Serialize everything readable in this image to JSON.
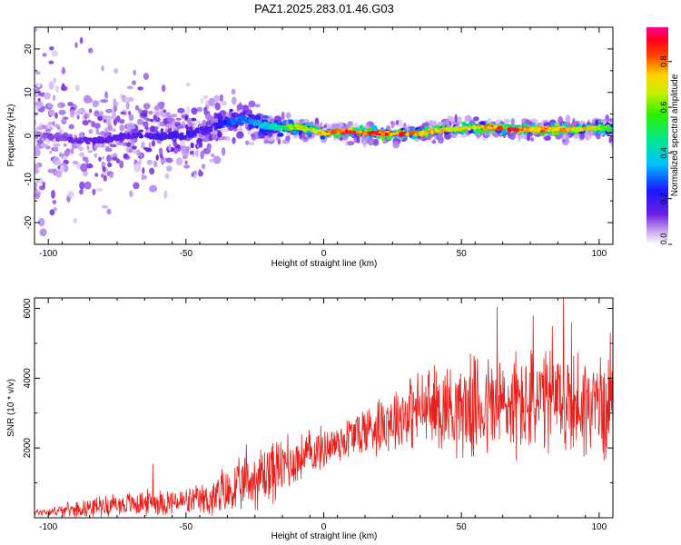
{
  "title": "PAZ1.2025.283.01.46.G03",
  "chart_data": [
    {
      "type": "heatmap",
      "title": "PAZ1.2025.283.01.46.G03",
      "xlabel": "Height of straight line (km)",
      "ylabel": "Frequency (Hz)",
      "xlim": [
        -105,
        105
      ],
      "ylim": [
        -25,
        25
      ],
      "xticks": [
        -100,
        -50,
        0,
        50,
        100
      ],
      "yticks": [
        -20,
        -10,
        0,
        10,
        20
      ],
      "ridge": {
        "description": "dominant frequency of spectral peak vs height",
        "x": [
          -105,
          -100,
          -90,
          -80,
          -70,
          -60,
          -50,
          -40,
          -35,
          -30,
          -25,
          -20,
          -15,
          -10,
          -5,
          0,
          5,
          10,
          15,
          20,
          25,
          30,
          35,
          40,
          45,
          50,
          55,
          60,
          65,
          70,
          75,
          80,
          85,
          90,
          95,
          100,
          105
        ],
        "freq": [
          0,
          0,
          -1,
          -1,
          0,
          0,
          0,
          2,
          3,
          4,
          3,
          2,
          2,
          2,
          1.5,
          0.5,
          1,
          1,
          0.5,
          0.5,
          0.5,
          0.5,
          0.5,
          1,
          1.5,
          1.5,
          2,
          2,
          1.5,
          1.5,
          1.5,
          1.5,
          1.5,
          1.5,
          1.5,
          2,
          1.5
        ],
        "peak_amplitude": [
          0.1,
          0.12,
          0.15,
          0.18,
          0.18,
          0.2,
          0.22,
          0.2,
          0.3,
          0.35,
          0.4,
          0.45,
          0.55,
          0.75,
          0.8,
          0.85,
          0.9,
          0.95,
          0.95,
          0.95,
          0.95,
          0.9,
          0.85,
          0.85,
          0.8,
          0.75,
          0.8,
          0.9,
          0.95,
          0.95,
          0.9,
          0.95,
          0.9,
          0.85,
          0.8,
          0.7,
          0.6
        ],
        "spread_hz": [
          12,
          12,
          10,
          8,
          7,
          6,
          5,
          4,
          3,
          2.5,
          2.5,
          2,
          1.5,
          1.2,
          1.2,
          1,
          1,
          1,
          1,
          1,
          1,
          1,
          1,
          1,
          1,
          1,
          1,
          1,
          1,
          1,
          1,
          1,
          1,
          1,
          1,
          1.2,
          1.5
        ]
      },
      "colorbar": {
        "label": "Normalized spectral amplitude",
        "range": [
          0,
          0.95
        ],
        "ticks": [
          "0.0",
          "0.2",
          "0.4",
          "0.6",
          "0.8"
        ],
        "colormap": "rainbow: white/lavender, purple, blue, cyan, green, yellow, orange, red, magenta"
      }
    },
    {
      "type": "line",
      "xlabel": "Height of straight line (km)",
      "ylabel": "SNR (10 * v/v)",
      "xlim": [
        -105,
        105
      ],
      "ylim": [
        0,
        6300
      ],
      "xticks": [
        -100,
        -50,
        0,
        50,
        100
      ],
      "yticks": [
        2000,
        4000,
        6000
      ],
      "series": [
        {
          "name": "SNR",
          "color": "#e8201c",
          "envelope_x": [
            -105,
            -100,
            -90,
            -80,
            -70,
            -60,
            -50,
            -45,
            -40,
            -35,
            -30,
            -25,
            -20,
            -15,
            -10,
            -5,
            0,
            5,
            10,
            15,
            20,
            25,
            30,
            35,
            40,
            45,
            50,
            55,
            60,
            65,
            70,
            75,
            80,
            85,
            90,
            95,
            100,
            105
          ],
          "mean": [
            150,
            180,
            250,
            350,
            400,
            450,
            450,
            500,
            550,
            700,
            900,
            1100,
            1300,
            1450,
            1650,
            1850,
            2000,
            2150,
            2350,
            2500,
            2700,
            2850,
            3000,
            3100,
            3150,
            3200,
            3150,
            3150,
            3200,
            3200,
            3250,
            3250,
            3300,
            3300,
            3250,
            3250,
            3200,
            3100
          ],
          "amplitude": [
            120,
            140,
            250,
            350,
            400,
            450,
            450,
            500,
            700,
            800,
            900,
            1000,
            1200,
            900,
            800,
            800,
            700,
            700,
            800,
            900,
            1000,
            1100,
            1200,
            1300,
            1400,
            1500,
            1600,
            1700,
            1800,
            1800,
            1800,
            1800,
            1800,
            1800,
            1800,
            1800,
            1700,
            1600
          ],
          "spikes": [
            {
              "x": -62,
              "y": 1550
            },
            {
              "x": -37,
              "y": 1400
            },
            {
              "x": -28,
              "y": 2100
            },
            {
              "x": -13,
              "y": 2400
            },
            {
              "x": 63,
              "y": 6050
            },
            {
              "x": 76,
              "y": 5800
            },
            {
              "x": 83,
              "y": 5500
            },
            {
              "x": 87,
              "y": 6300
            },
            {
              "x": 90,
              "y": 5600
            },
            {
              "x": 104,
              "y": 5300
            }
          ]
        }
      ]
    }
  ]
}
